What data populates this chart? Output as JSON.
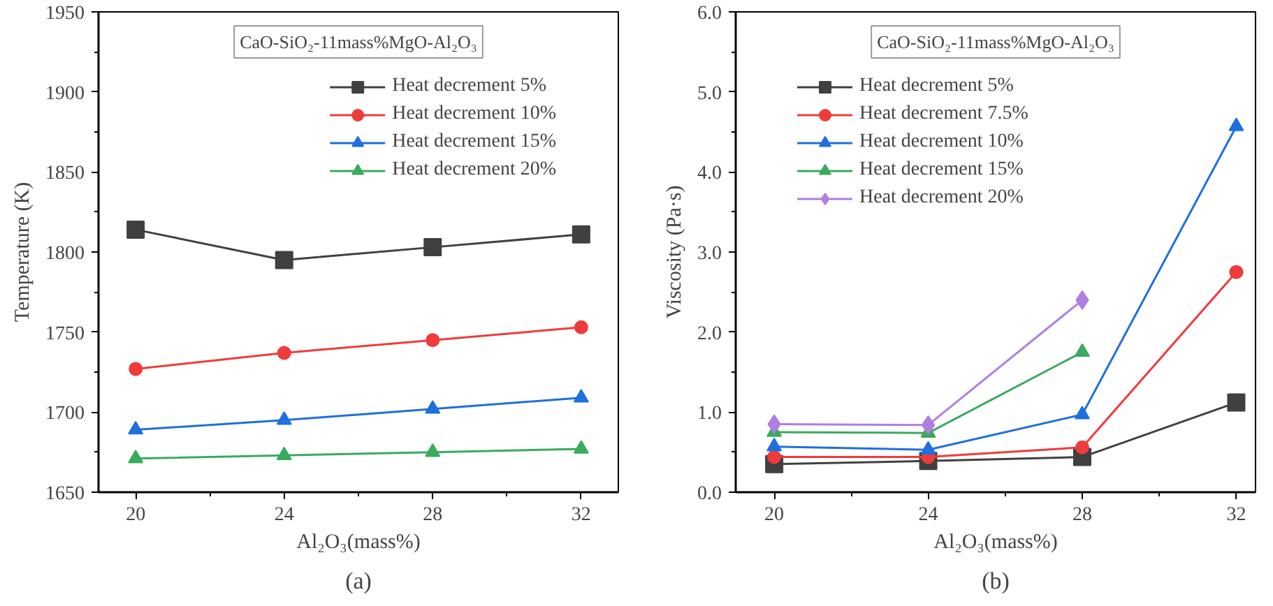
{
  "chart_data": [
    {
      "type": "line",
      "xlabel": "Al₂O₃(mass%)",
      "ylabel": "Temperature (K)",
      "annotations": [
        "CaO-SiO₂-11mass%MgO-Al₂O₃",
        "(a)"
      ],
      "legend": "top right",
      "grid": false,
      "line_style": "solid",
      "x": [
        20,
        24,
        28,
        32
      ],
      "xlim": [
        19,
        33
      ],
      "xticks": [
        20,
        24,
        28,
        32
      ],
      "ylim": [
        1650,
        1950
      ],
      "yticks": [
        1650,
        1700,
        1750,
        1800,
        1850,
        1900,
        1950
      ],
      "series": [
        {
          "name": "Heat decrement 5%",
          "color": "#404040",
          "marker": "square",
          "values": [
            1814,
            1795,
            1803,
            1811
          ]
        },
        {
          "name": "Heat decrement 10%",
          "color": "#ef3b3b",
          "marker": "circle",
          "values": [
            1727,
            1737,
            1745,
            1753
          ]
        },
        {
          "name": "Heat decrement 15%",
          "color": "#1f6fde",
          "marker": "triangle",
          "values": [
            1689,
            1695,
            1702,
            1709
          ]
        },
        {
          "name": "Heat decrement 20%",
          "color": "#3aaa5e",
          "marker": "triangle",
          "values": [
            1671,
            1673,
            1675,
            1677
          ]
        }
      ]
    },
    {
      "type": "line",
      "xlabel": "Al₂O₃(mass%)",
      "ylabel": "Viscosity (Pa·s)",
      "annotations": [
        "CaO-SiO₂-11mass%MgO-Al₂O₃",
        "(b)"
      ],
      "legend": "top left",
      "grid": false,
      "line_style": "solid",
      "x": [
        20,
        24,
        28,
        32
      ],
      "xlim": [
        19,
        32.5
      ],
      "xticks": [
        20,
        24,
        28,
        32
      ],
      "ylim": [
        0,
        6
      ],
      "yticks": [
        {
          "value": 0,
          "label": "0.0"
        },
        {
          "value": 1,
          "label": "1.0"
        },
        {
          "value": 2,
          "label": "2.0"
        },
        {
          "value": 3,
          "label": "3.0"
        },
        {
          "value": 4,
          "label": "4.0"
        },
        {
          "value": 5,
          "label": "5.0"
        },
        {
          "value": 6,
          "label": "6.0"
        }
      ],
      "series": [
        {
          "name": "Heat decrement 5%",
          "color": "#404040",
          "marker": "square",
          "values": [
            0.35,
            0.39,
            0.44,
            1.12
          ]
        },
        {
          "name": "Heat decrement 7.5%",
          "color": "#ef3b3b",
          "marker": "circle",
          "values": [
            0.44,
            0.44,
            0.56,
            2.75
          ]
        },
        {
          "name": "Heat decrement 10%",
          "color": "#1f6fde",
          "marker": "triangle",
          "values": [
            0.57,
            0.53,
            0.97,
            4.57
          ]
        },
        {
          "name": "Heat decrement 15%",
          "color": "#3aaa5e",
          "marker": "triangle",
          "values": [
            0.75,
            0.74,
            1.75,
            null
          ]
        },
        {
          "name": "Heat decrement 20%",
          "color": "#b07ee0",
          "marker": "diamond",
          "values": [
            0.85,
            0.84,
            2.4,
            null
          ]
        }
      ]
    }
  ]
}
